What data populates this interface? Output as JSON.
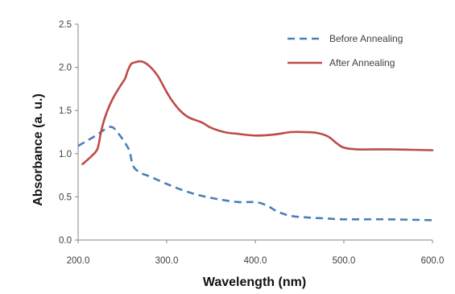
{
  "chart_data": {
    "type": "line",
    "xlabel": "Wavelength (nm)",
    "ylabel": "Absorbance (a. u.)",
    "xlim": [
      200,
      600
    ],
    "ylim": [
      0,
      2.5
    ],
    "x_ticks": [
      "200.0",
      "300.0",
      "400.0",
      "500.0",
      "600.0"
    ],
    "y_ticks": [
      "0.0",
      "0.5",
      "1.0",
      "1.5",
      "2.0",
      "2.5"
    ],
    "grid": false,
    "legend_position": "top-right",
    "series": [
      {
        "name": "Before Annealing",
        "color": "#4a7ebb",
        "style": "dashed",
        "points": [
          [
            200,
            1.09
          ],
          [
            210,
            1.15
          ],
          [
            220,
            1.21
          ],
          [
            230,
            1.28
          ],
          [
            238,
            1.31
          ],
          [
            245,
            1.24
          ],
          [
            252,
            1.14
          ],
          [
            258,
            1.03
          ],
          [
            262,
            0.86
          ],
          [
            270,
            0.78
          ],
          [
            280,
            0.74
          ],
          [
            300,
            0.65
          ],
          [
            320,
            0.57
          ],
          [
            340,
            0.51
          ],
          [
            360,
            0.47
          ],
          [
            380,
            0.44
          ],
          [
            395,
            0.44
          ],
          [
            405,
            0.43
          ],
          [
            415,
            0.39
          ],
          [
            425,
            0.33
          ],
          [
            440,
            0.28
          ],
          [
            460,
            0.26
          ],
          [
            480,
            0.25
          ],
          [
            500,
            0.24
          ],
          [
            550,
            0.24
          ],
          [
            600,
            0.23
          ]
        ]
      },
      {
        "name": "After Annealing",
        "color": "#be4b48",
        "style": "solid",
        "points": [
          [
            205,
            0.88
          ],
          [
            215,
            0.97
          ],
          [
            222,
            1.06
          ],
          [
            226,
            1.26
          ],
          [
            230,
            1.41
          ],
          [
            236,
            1.57
          ],
          [
            242,
            1.69
          ],
          [
            248,
            1.79
          ],
          [
            253,
            1.87
          ],
          [
            256,
            1.96
          ],
          [
            260,
            2.04
          ],
          [
            265,
            2.06
          ],
          [
            270,
            2.07
          ],
          [
            276,
            2.05
          ],
          [
            282,
            2.0
          ],
          [
            290,
            1.9
          ],
          [
            298,
            1.75
          ],
          [
            305,
            1.63
          ],
          [
            315,
            1.5
          ],
          [
            325,
            1.42
          ],
          [
            340,
            1.36
          ],
          [
            350,
            1.3
          ],
          [
            365,
            1.25
          ],
          [
            380,
            1.23
          ],
          [
            400,
            1.21
          ],
          [
            420,
            1.22
          ],
          [
            440,
            1.25
          ],
          [
            455,
            1.25
          ],
          [
            470,
            1.24
          ],
          [
            482,
            1.2
          ],
          [
            492,
            1.12
          ],
          [
            500,
            1.07
          ],
          [
            515,
            1.05
          ],
          [
            550,
            1.05
          ],
          [
            600,
            1.04
          ]
        ]
      }
    ]
  }
}
